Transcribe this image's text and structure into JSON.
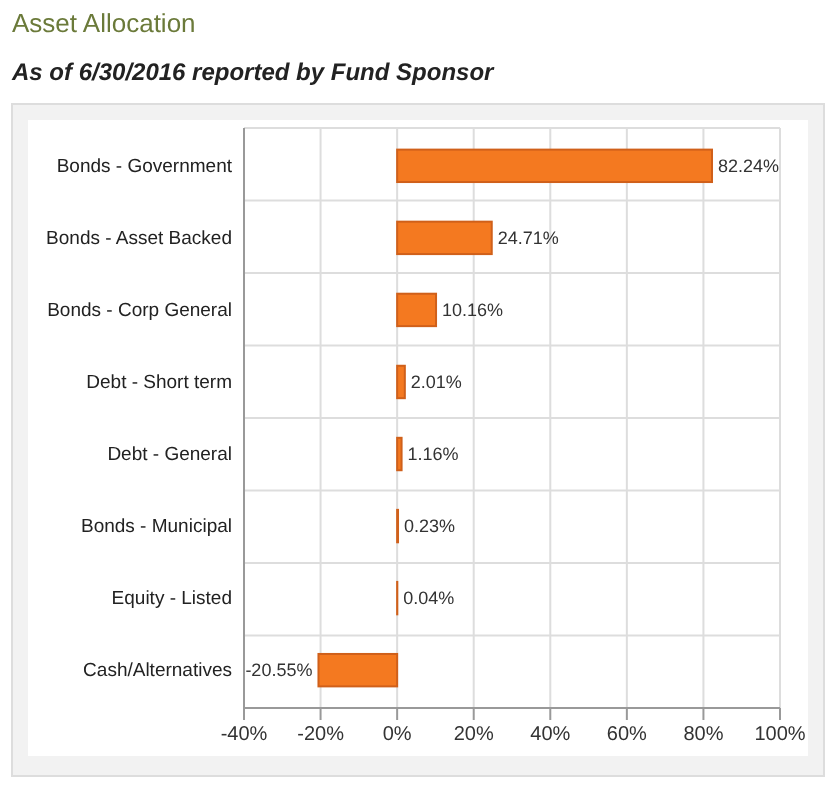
{
  "chart_data": {
    "type": "bar",
    "orientation": "horizontal",
    "title": "Asset Allocation",
    "subtitle": "As of 6/30/2016 reported by Fund Sponsor",
    "categories": [
      "Bonds - Government",
      "Bonds - Asset Backed",
      "Bonds - Corp General",
      "Debt - Short term",
      "Debt - General",
      "Bonds - Municipal",
      "Equity - Listed",
      "Cash/Alternatives"
    ],
    "values": [
      82.24,
      24.71,
      10.16,
      2.01,
      1.16,
      0.23,
      0.04,
      -20.55
    ],
    "value_labels": [
      "82.24%",
      "24.71%",
      "10.16%",
      "2.01%",
      "1.16%",
      "0.23%",
      "0.04%",
      "-20.55%"
    ],
    "color": "#f47920",
    "xlim": [
      -40,
      100
    ],
    "xticks": [
      {
        "value": -40,
        "label": "-40%"
      },
      {
        "value": -20,
        "label": "-20%"
      },
      {
        "value": 0,
        "label": "0%"
      },
      {
        "value": 20,
        "label": "20%"
      },
      {
        "value": 40,
        "label": "40%"
      },
      {
        "value": 60,
        "label": "60%"
      },
      {
        "value": 80,
        "label": "80%"
      },
      {
        "value": 100,
        "label": "100%"
      }
    ],
    "grid": true
  }
}
